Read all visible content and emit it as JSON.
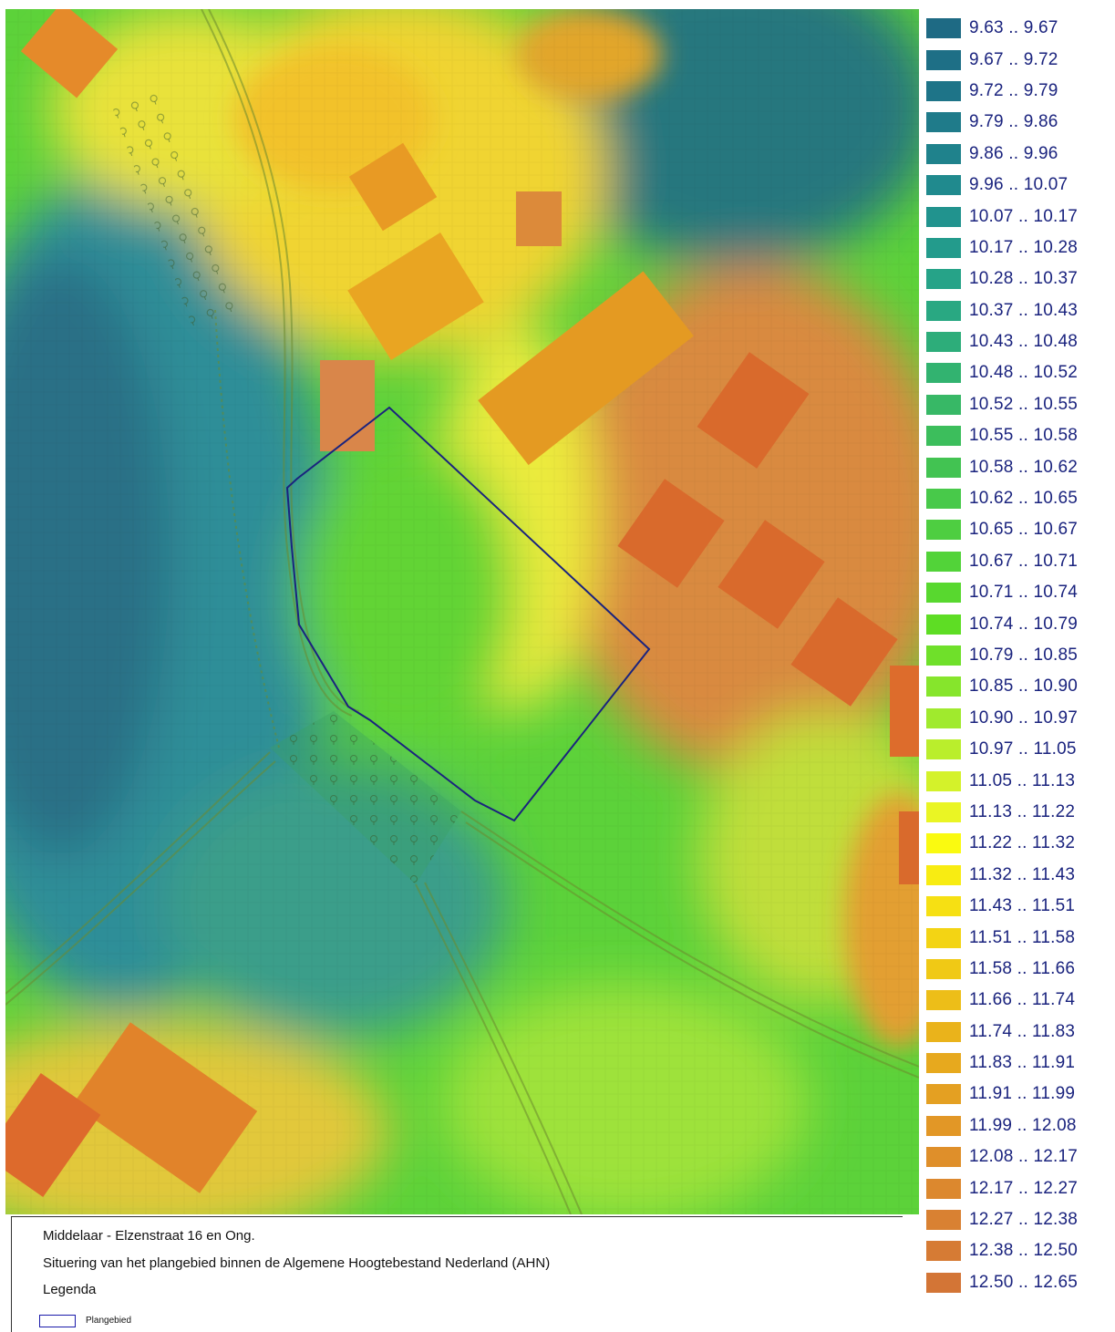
{
  "map": {
    "legend_ranges": [
      {
        "label": "9.63 .. 9.67",
        "color": "#1e6a84"
      },
      {
        "label": "9.67 .. 9.72",
        "color": "#1e6f86"
      },
      {
        "label": "9.72 .. 9.79",
        "color": "#1e7488"
      },
      {
        "label": "9.79 .. 9.86",
        "color": "#1f7b8a"
      },
      {
        "label": "9.86 .. 9.96",
        "color": "#1f828c"
      },
      {
        "label": "9.96 .. 10.07",
        "color": "#208a8e"
      },
      {
        "label": "10.07 .. 10.17",
        "color": "#21938e"
      },
      {
        "label": "10.17 .. 10.28",
        "color": "#239b8c"
      },
      {
        "label": "10.28 .. 10.37",
        "color": "#26a388"
      },
      {
        "label": "10.37 .. 10.43",
        "color": "#29a882"
      },
      {
        "label": "10.43 .. 10.48",
        "color": "#2dad7a"
      },
      {
        "label": "10.48 .. 10.52",
        "color": "#32b370"
      },
      {
        "label": "10.52 .. 10.55",
        "color": "#37b866"
      },
      {
        "label": "10.55 .. 10.58",
        "color": "#3cbe5c"
      },
      {
        "label": "10.58 .. 10.62",
        "color": "#42c352"
      },
      {
        "label": "10.62 .. 10.65",
        "color": "#48c94a"
      },
      {
        "label": "10.65 .. 10.67",
        "color": "#4ece41"
      },
      {
        "label": "10.67 .. 10.71",
        "color": "#52d339"
      },
      {
        "label": "10.71 .. 10.74",
        "color": "#58d82f"
      },
      {
        "label": "10.74 .. 10.79",
        "color": "#5edd24"
      },
      {
        "label": "10.79 .. 10.85",
        "color": "#6fe02a"
      },
      {
        "label": "10.85 .. 10.90",
        "color": "#86e52c"
      },
      {
        "label": "10.90 .. 10.97",
        "color": "#a0ea2d"
      },
      {
        "label": "10.97 .. 11.05",
        "color": "#baee2c"
      },
      {
        "label": "11.05 .. 11.13",
        "color": "#d4f22a"
      },
      {
        "label": "11.13 .. 11.22",
        "color": "#eaf524"
      },
      {
        "label": "11.22 .. 11.32",
        "color": "#fafa10"
      },
      {
        "label": "11.32 .. 11.43",
        "color": "#f8ec12"
      },
      {
        "label": "11.43 .. 11.51",
        "color": "#f6e013"
      },
      {
        "label": "11.51 .. 11.58",
        "color": "#f3d414"
      },
      {
        "label": "11.58 .. 11.66",
        "color": "#f0c915"
      },
      {
        "label": "11.66 .. 11.74",
        "color": "#edbe18"
      },
      {
        "label": "11.74 .. 11.83",
        "color": "#eab31b"
      },
      {
        "label": "11.83 .. 11.91",
        "color": "#e7a91e"
      },
      {
        "label": "11.91 .. 11.99",
        "color": "#e4a022"
      },
      {
        "label": "11.99 .. 12.08",
        "color": "#e29726"
      },
      {
        "label": "12.08 .. 12.17",
        "color": "#df8f2a"
      },
      {
        "label": "12.17 .. 12.27",
        "color": "#dc882e"
      },
      {
        "label": "12.27 .. 12.38",
        "color": "#d98132"
      },
      {
        "label": "12.38 .. 12.50",
        "color": "#d67b34"
      },
      {
        "label": "12.50 .. 12.65",
        "color": "#d37536"
      }
    ],
    "area_colors": {
      "teal_dark": "#2b6f86",
      "teal_mid": "#33989a",
      "green": "#5ed238",
      "lime": "#a6e83a",
      "yellow": "#eeeb3a",
      "orange": "#e79a2a",
      "red_orange": "#dd6a2c",
      "boundary": "#1a237e"
    }
  },
  "info": {
    "title": "Middelaar - Elzenstraat 16 en Ong.",
    "subtitle": "Situering van het plangebied binnen de Algemene Hoogtebestand Nederland (AHN)",
    "legend_heading": "Legenda",
    "legend_item_label": "Plangebied"
  }
}
